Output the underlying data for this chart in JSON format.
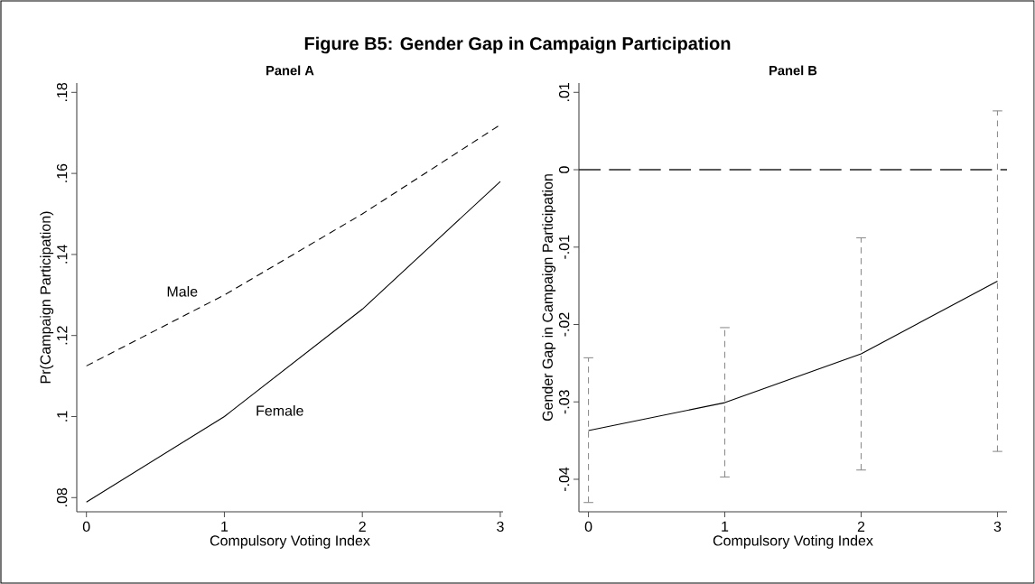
{
  "chart_data": [
    {
      "type": "line",
      "title": "Panel A",
      "annotations": [
        "Figure B5: Gender Gap in Campaign Participation"
      ],
      "xlabel": "Compulsory Voting Index",
      "ylabel": "Pr(Campaign Participation)",
      "x": [
        0,
        1,
        2,
        3
      ],
      "xlim": [
        -0.07,
        3.02
      ],
      "xticks": [
        0,
        1,
        2,
        3
      ],
      "ylim": [
        0.0765,
        0.1823
      ],
      "yticks": [
        {
          "value": 0.08,
          "label": ".08"
        },
        {
          "value": 0.1,
          "label": ".1"
        },
        {
          "value": 0.12,
          "label": ".12"
        },
        {
          "value": 0.14,
          "label": ".14"
        },
        {
          "value": 0.16,
          "label": ".16"
        },
        {
          "value": 0.18,
          "label": ".18"
        }
      ],
      "series": [
        {
          "name": "Male",
          "color": "#000000",
          "line_style": "dashed",
          "values": [
            0.1125,
            0.13,
            0.15,
            0.172
          ]
        },
        {
          "name": "Female",
          "color": "#000000",
          "line_style": "solid",
          "values": [
            0.0789,
            0.1,
            0.1265,
            0.158
          ]
        }
      ]
    },
    {
      "type": "line",
      "title": "Panel B",
      "xlabel": "Compulsory Voting Index",
      "ylabel": "Gender Gap in Campaign Participation",
      "x": [
        0,
        1,
        2,
        3
      ],
      "xlim": [
        -0.07,
        3.07
      ],
      "xticks": [
        0,
        1,
        2,
        3
      ],
      "ylim": [
        -0.0442,
        0.0112
      ],
      "yticks": [
        {
          "value": -0.04,
          "label": "-.04"
        },
        {
          "value": -0.03,
          "label": "-.03"
        },
        {
          "value": -0.02,
          "label": "-.02"
        },
        {
          "value": -0.01,
          "label": "-.01"
        },
        0,
        {
          "value": 0.01,
          "label": ".01"
        }
      ],
      "series": [
        {
          "color": "#000000",
          "line_style": "solid",
          "values": [
            -0.0337,
            -0.0301,
            -0.0238,
            -0.0144
          ],
          "errors": [
            [
              -0.043,
              -0.0243
            ],
            [
              -0.0397,
              -0.0204
            ],
            [
              -0.0388,
              -0.0088
            ],
            [
              -0.0364,
              0.0076
            ]
          ]
        }
      ],
      "ref_lines": [
        {
          "axis": "y",
          "value": 0,
          "color": "#222222",
          "line_style": "dashed"
        }
      ]
    }
  ]
}
